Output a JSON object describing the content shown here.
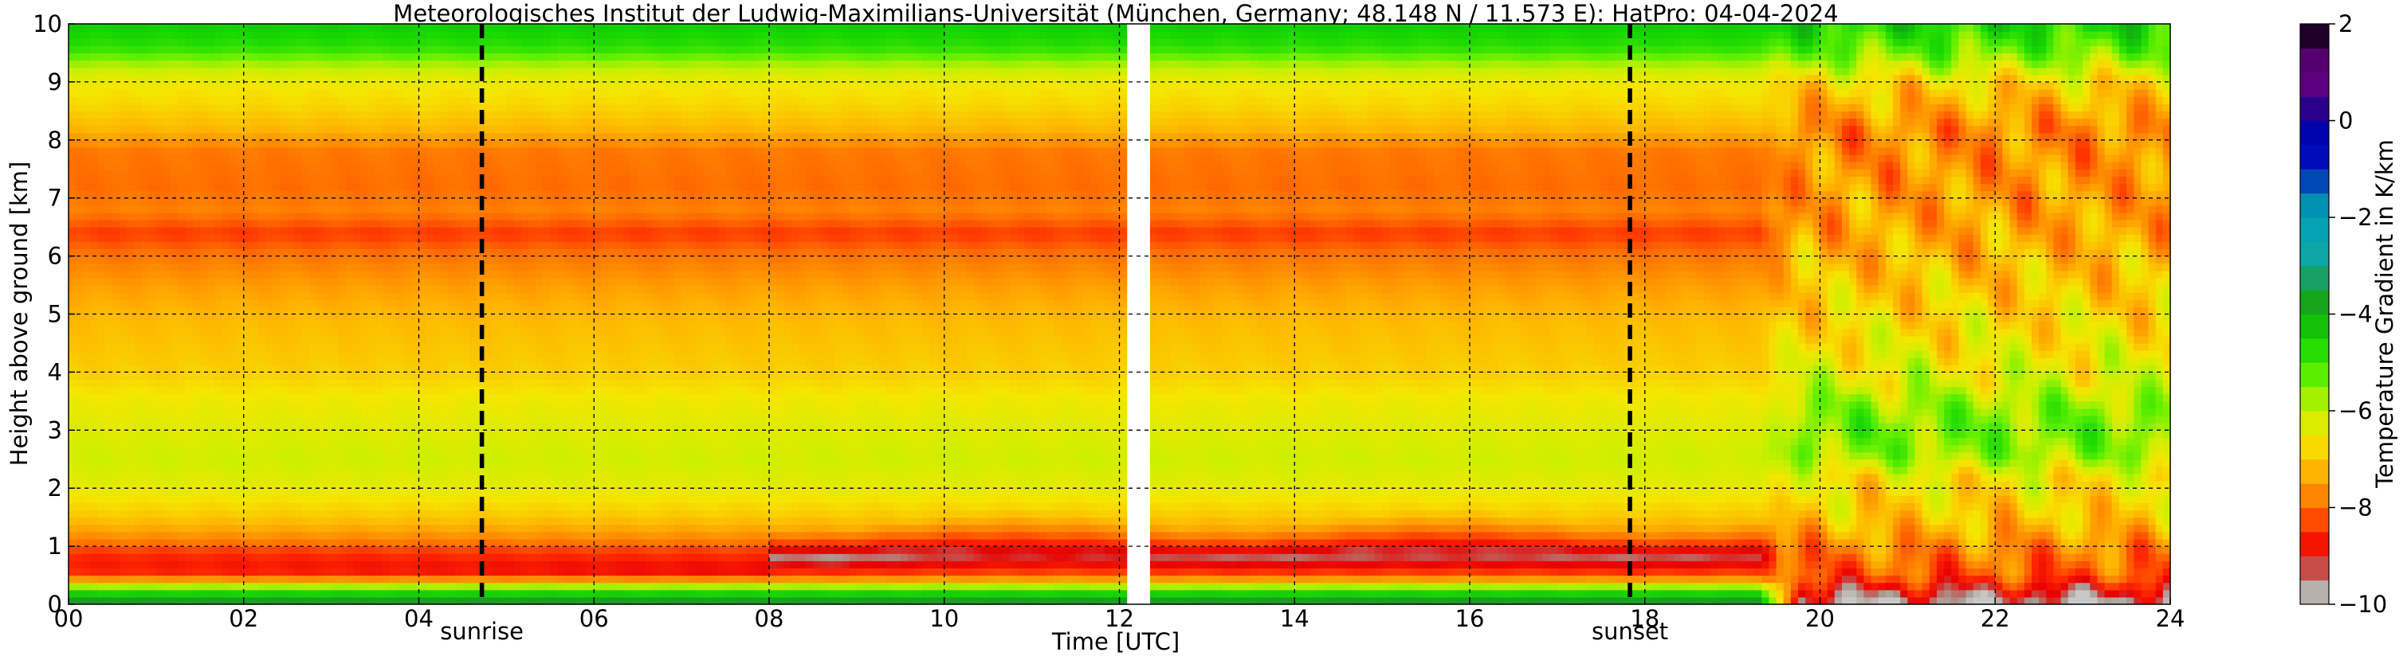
{
  "chart_data": {
    "type": "heatmap",
    "title": "Meteorologisches Institut der Ludwig-Maximilians-Universität (München, Germany; 48.148 N / 11.573 E):    HatPro: 04-04-2024",
    "xlabel": "Time [UTC]",
    "ylabel": "Height above ground [km]",
    "xlim": [
      0,
      24
    ],
    "ylim": [
      0,
      10
    ],
    "x_ticks": [
      "00",
      "02",
      "04",
      "06",
      "08",
      "10",
      "12",
      "14",
      "16",
      "18",
      "20",
      "22",
      "24"
    ],
    "y_ticks": [
      "0",
      "1",
      "2",
      "3",
      "4",
      "5",
      "6",
      "7",
      "8",
      "9",
      "10"
    ],
    "grid": true,
    "data_gap": [
      12.1,
      12.35
    ],
    "markers": [
      {
        "label": "sunrise",
        "time": 4.72
      },
      {
        "label": "sunset",
        "time": 17.83
      }
    ],
    "colorbar": {
      "label": "Temperature Gradient in K/km",
      "range": [
        -10,
        2
      ],
      "ticks": [
        "2",
        "0",
        "−2",
        "−4",
        "−6",
        "−8",
        "−10"
      ],
      "colors": [
        {
          "value": -10,
          "color": "#c8c8c8"
        },
        {
          "value": -9.5,
          "color": "#a89890"
        },
        {
          "value": -9,
          "color": "#e80000"
        },
        {
          "value": -8.5,
          "color": "#ff2a00"
        },
        {
          "value": -8,
          "color": "#ff6e00"
        },
        {
          "value": -7.3,
          "color": "#ffb000"
        },
        {
          "value": -6.6,
          "color": "#f5e600"
        },
        {
          "value": -6,
          "color": "#c8f000"
        },
        {
          "value": -5.3,
          "color": "#60f000"
        },
        {
          "value": -4.6,
          "color": "#18d800"
        },
        {
          "value": -4,
          "color": "#10b010"
        },
        {
          "value": -3.5,
          "color": "#1e9a28"
        },
        {
          "value": -3,
          "color": "#10a8a0"
        },
        {
          "value": -2,
          "color": "#00a0b8"
        },
        {
          "value": -1.5,
          "color": "#0080a8"
        },
        {
          "value": -1,
          "color": "#0010c0"
        },
        {
          "value": 0,
          "color": "#0000a8"
        },
        {
          "value": 0.5,
          "color": "#500070"
        },
        {
          "value": 1,
          "color": "#6a0090"
        },
        {
          "value": 1.5,
          "color": "#400050"
        },
        {
          "value": 2,
          "color": "#000000"
        }
      ]
    },
    "profile_stable": [
      {
        "h": 0.0,
        "v": -3.0
      },
      {
        "h": 0.12,
        "v": -4.2
      },
      {
        "h": 0.25,
        "v": -4.8
      },
      {
        "h": 0.4,
        "v": -7.2
      },
      {
        "h": 0.6,
        "v": -8.3
      },
      {
        "h": 0.85,
        "v": -8.6
      },
      {
        "h": 1.1,
        "v": -7.8
      },
      {
        "h": 1.5,
        "v": -7.0
      },
      {
        "h": 2.0,
        "v": -6.4
      },
      {
        "h": 2.5,
        "v": -6.1
      },
      {
        "h": 3.0,
        "v": -6.3
      },
      {
        "h": 3.5,
        "v": -6.5
      },
      {
        "h": 4.0,
        "v": -6.9
      },
      {
        "h": 5.0,
        "v": -7.2
      },
      {
        "h": 5.5,
        "v": -7.5
      },
      {
        "h": 6.0,
        "v": -7.9
      },
      {
        "h": 6.4,
        "v": -8.4
      },
      {
        "h": 6.8,
        "v": -7.8
      },
      {
        "h": 7.2,
        "v": -8.0
      },
      {
        "h": 7.8,
        "v": -7.9
      },
      {
        "h": 8.2,
        "v": -7.2
      },
      {
        "h": 8.6,
        "v": -6.8
      },
      {
        "h": 9.0,
        "v": -6.5
      },
      {
        "h": 9.3,
        "v": -5.8
      },
      {
        "h": 9.6,
        "v": -4.8
      },
      {
        "h": 10.0,
        "v": -4.4
      }
    ],
    "profile_night": [
      {
        "h": 0.0,
        "v": -9.8
      },
      {
        "h": 0.2,
        "v": -9.2
      },
      {
        "h": 0.5,
        "v": -8.2
      },
      {
        "h": 0.9,
        "v": -7.8
      },
      {
        "h": 1.5,
        "v": -7.0
      },
      {
        "h": 2.2,
        "v": -6.6
      },
      {
        "h": 2.6,
        "v": -5.6
      },
      {
        "h": 3.0,
        "v": -5.4
      },
      {
        "h": 3.4,
        "v": -5.6
      },
      {
        "h": 3.8,
        "v": -6.2
      },
      {
        "h": 4.5,
        "v": -6.6
      },
      {
        "h": 5.5,
        "v": -7.0
      },
      {
        "h": 6.5,
        "v": -7.4
      },
      {
        "h": 7.5,
        "v": -7.6
      },
      {
        "h": 8.2,
        "v": -7.7
      },
      {
        "h": 9.0,
        "v": -6.8
      },
      {
        "h": 9.5,
        "v": -5.4
      },
      {
        "h": 10.0,
        "v": -4.6
      }
    ]
  }
}
